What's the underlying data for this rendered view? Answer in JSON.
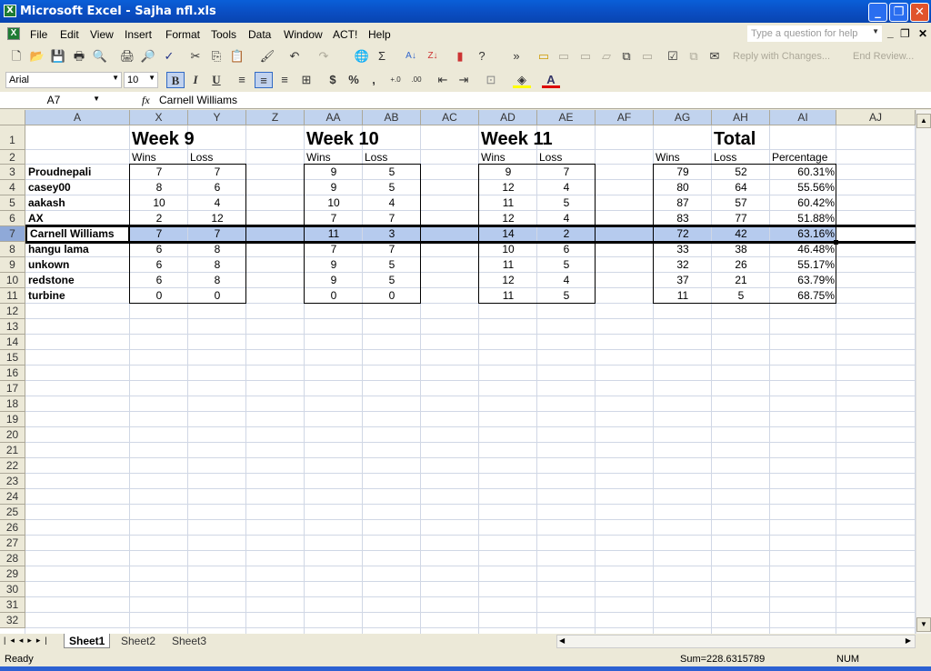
{
  "window": {
    "title": "Microsoft Excel - Sajha nfl.xls",
    "minimize": "_",
    "restore": "❐",
    "close": "✕"
  },
  "menu": [
    "File",
    "Edit",
    "View",
    "Insert",
    "Format",
    "Tools",
    "Data",
    "Window",
    "ACT!",
    "Help"
  ],
  "help_box": {
    "placeholder": "Type a question for help"
  },
  "toolbar": {
    "reply_label": "Reply with Changes...",
    "end_review_label": "End Review..."
  },
  "format": {
    "font": "Arial",
    "size": "10",
    "bold": "B",
    "italic": "I",
    "underline": "U",
    "currency": "$",
    "percent": "%",
    "comma": ","
  },
  "formula_bar": {
    "name_box": "A7",
    "fx": "fx",
    "content": "Carnell Williams"
  },
  "columns": [
    "A",
    "X",
    "Y",
    "Z",
    "AA",
    "AB",
    "AC",
    "AD",
    "AE",
    "AF",
    "AG",
    "AH",
    "AI",
    "AJ"
  ],
  "row_numbers": [
    "1",
    "2",
    "3",
    "4",
    "5",
    "6",
    "7",
    "8",
    "9",
    "10",
    "11",
    "12",
    "13",
    "14",
    "15",
    "16",
    "17",
    "18",
    "19",
    "20",
    "21",
    "22",
    "23",
    "24",
    "25",
    "26",
    "27",
    "28",
    "29",
    "30",
    "31",
    "32"
  ],
  "headings": {
    "week9": "Week 9",
    "week10": "Week 10",
    "week11": "Week 11",
    "total": "Total"
  },
  "subheadings": {
    "wins": "Wins",
    "loss": "Loss",
    "percentage": "Percentage"
  },
  "rows": [
    {
      "name": "Proudnepali",
      "w9": [
        "7",
        "7"
      ],
      "w10": [
        "9",
        "5"
      ],
      "w11": [
        "9",
        "7"
      ],
      "total": [
        "79",
        "52",
        "60.31%"
      ]
    },
    {
      "name": "casey00",
      "w9": [
        "8",
        "6"
      ],
      "w10": [
        "9",
        "5"
      ],
      "w11": [
        "12",
        "4"
      ],
      "total": [
        "80",
        "64",
        "55.56%"
      ]
    },
    {
      "name": "aakash",
      "w9": [
        "10",
        "4"
      ],
      "w10": [
        "10",
        "4"
      ],
      "w11": [
        "11",
        "5"
      ],
      "total": [
        "87",
        "57",
        "60.42%"
      ]
    },
    {
      "name": "AX",
      "w9": [
        "2",
        "12"
      ],
      "w10": [
        "7",
        "7"
      ],
      "w11": [
        "12",
        "4"
      ],
      "total": [
        "83",
        "77",
        "51.88%"
      ]
    },
    {
      "name": "Carnell Williams",
      "w9": [
        "7",
        "7"
      ],
      "w10": [
        "11",
        "3"
      ],
      "w11": [
        "14",
        "2"
      ],
      "total": [
        "72",
        "42",
        "63.16%"
      ]
    },
    {
      "name": "hangu lama",
      "w9": [
        "6",
        "8"
      ],
      "w10": [
        "7",
        "7"
      ],
      "w11": [
        "10",
        "6"
      ],
      "total": [
        "33",
        "38",
        "46.48%"
      ]
    },
    {
      "name": "unkown",
      "w9": [
        "6",
        "8"
      ],
      "w10": [
        "9",
        "5"
      ],
      "w11": [
        "11",
        "5"
      ],
      "total": [
        "32",
        "26",
        "55.17%"
      ]
    },
    {
      "name": "redstone",
      "w9": [
        "6",
        "8"
      ],
      "w10": [
        "9",
        "5"
      ],
      "w11": [
        "12",
        "4"
      ],
      "total": [
        "37",
        "21",
        "63.79%"
      ]
    },
    {
      "name": "turbine",
      "w9": [
        "0",
        "0"
      ],
      "w10": [
        "0",
        "0"
      ],
      "w11": [
        "11",
        "5"
      ],
      "total": [
        "11",
        "5",
        "68.75%"
      ]
    }
  ],
  "selected_row_index": 4,
  "sheets": [
    "Sheet1",
    "Sheet2",
    "Sheet3"
  ],
  "active_sheet": "Sheet1",
  "status": {
    "ready": "Ready",
    "sum": "Sum=228.6315789",
    "num": "NUM"
  },
  "colors": {
    "selection": "#b6cbee",
    "title_bar": "#0a5fd8",
    "header_highlight": "#c1d3ee"
  }
}
